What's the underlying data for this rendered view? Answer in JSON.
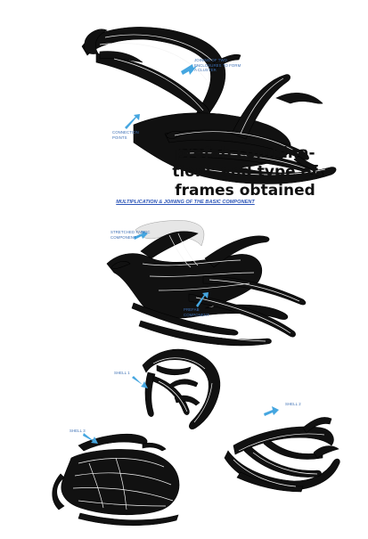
{
  "top_section": {
    "annotation_joining": [
      "JOINING OF TWO",
      "ENCLOSURES TO FORM",
      "A CLUSTER"
    ],
    "annotation_connection": [
      "CONNECTION",
      "POINTS"
    ]
  },
  "heading": {
    "line1": "prefab combina-",
    "line2": "tions and type of",
    "line3": "frames obtained"
  },
  "middle_section": {
    "subtitle": "MULTIPLICATION & JOINING OF THE BASIC COMPONENT",
    "annotation_stretch": [
      "STRETCHED FABRIC",
      "COMPONENT"
    ],
    "annotation_prefab": [
      "PREFAB",
      "COMPONENT"
    ]
  },
  "bottom_section": {
    "shell_1_label": "SHELL 1",
    "shell_2_label": "SHELL 2",
    "shell_3_label": "SHELL 3"
  },
  "colors": {
    "annotation": "#3d6fb4",
    "arrow": "#45a6e0",
    "frame": "#111111"
  }
}
